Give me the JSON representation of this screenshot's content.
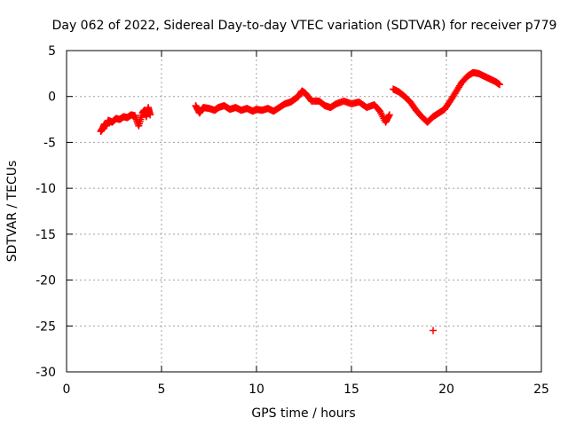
{
  "chart_data": {
    "type": "scatter",
    "title": "Day 062 of 2022, Sidereal Day-to-day VTEC variation (SDTVAR) for receiver p779",
    "xlabel": "GPS time / hours",
    "ylabel": "SDTVAR / TECUs",
    "xlim": [
      0,
      25
    ],
    "ylim": [
      -30,
      5
    ],
    "xticks": [
      0,
      5,
      10,
      15,
      20,
      25
    ],
    "yticks": [
      -30,
      -25,
      -20,
      -15,
      -10,
      -5,
      0,
      5
    ],
    "grid": true,
    "marker": "+",
    "color": "#ff0000",
    "series": [
      {
        "name": "SDTVAR",
        "values": [
          [
            1.8,
            -3.8
          ],
          [
            1.9,
            -3.5
          ],
          [
            2.0,
            -3.0
          ],
          [
            2.1,
            -3.2
          ],
          [
            2.2,
            -2.6
          ],
          [
            2.4,
            -2.8
          ],
          [
            2.6,
            -2.4
          ],
          [
            2.8,
            -2.5
          ],
          [
            3.0,
            -2.2
          ],
          [
            3.2,
            -2.3
          ],
          [
            3.4,
            -2.0
          ],
          [
            3.6,
            -2.1
          ],
          [
            3.8,
            -3.2
          ],
          [
            4.0,
            -1.8
          ],
          [
            4.1,
            -1.5
          ],
          [
            4.2,
            -2.2
          ],
          [
            4.3,
            -1.2
          ],
          [
            4.4,
            -2.0
          ],
          [
            6.8,
            -1.0
          ],
          [
            7.0,
            -1.8
          ],
          [
            7.2,
            -1.2
          ],
          [
            7.5,
            -1.3
          ],
          [
            7.8,
            -1.5
          ],
          [
            8.0,
            -1.2
          ],
          [
            8.3,
            -1.0
          ],
          [
            8.6,
            -1.4
          ],
          [
            8.9,
            -1.2
          ],
          [
            9.2,
            -1.5
          ],
          [
            9.5,
            -1.3
          ],
          [
            9.8,
            -1.6
          ],
          [
            10.0,
            -1.4
          ],
          [
            10.3,
            -1.5
          ],
          [
            10.6,
            -1.3
          ],
          [
            10.9,
            -1.6
          ],
          [
            11.2,
            -1.2
          ],
          [
            11.5,
            -0.8
          ],
          [
            11.8,
            -0.6
          ],
          [
            12.0,
            -0.3
          ],
          [
            12.2,
            0.0
          ],
          [
            12.4,
            0.6
          ],
          [
            12.6,
            0.3
          ],
          [
            12.9,
            -0.5
          ],
          [
            13.3,
            -0.5
          ],
          [
            13.6,
            -1.0
          ],
          [
            13.9,
            -1.2
          ],
          [
            14.2,
            -0.8
          ],
          [
            14.6,
            -0.5
          ],
          [
            15.0,
            -0.8
          ],
          [
            15.4,
            -0.6
          ],
          [
            15.8,
            -1.2
          ],
          [
            16.2,
            -0.9
          ],
          [
            16.5,
            -1.6
          ],
          [
            16.8,
            -2.8
          ],
          [
            17.0,
            -2.0
          ],
          [
            17.2,
            0.8
          ],
          [
            17.5,
            0.5
          ],
          [
            17.8,
            0.0
          ],
          [
            18.1,
            -0.6
          ],
          [
            18.4,
            -1.5
          ],
          [
            18.7,
            -2.2
          ],
          [
            19.0,
            -2.8
          ],
          [
            19.3,
            -2.2
          ],
          [
            19.6,
            -1.8
          ],
          [
            19.9,
            -1.4
          ],
          [
            20.2,
            -0.5
          ],
          [
            20.5,
            0.5
          ],
          [
            20.8,
            1.5
          ],
          [
            21.1,
            2.2
          ],
          [
            21.4,
            2.6
          ],
          [
            21.7,
            2.5
          ],
          [
            22.0,
            2.2
          ],
          [
            22.3,
            1.9
          ],
          [
            22.6,
            1.6
          ],
          [
            22.8,
            1.3
          ],
          [
            19.3,
            -25.5
          ]
        ]
      }
    ]
  }
}
